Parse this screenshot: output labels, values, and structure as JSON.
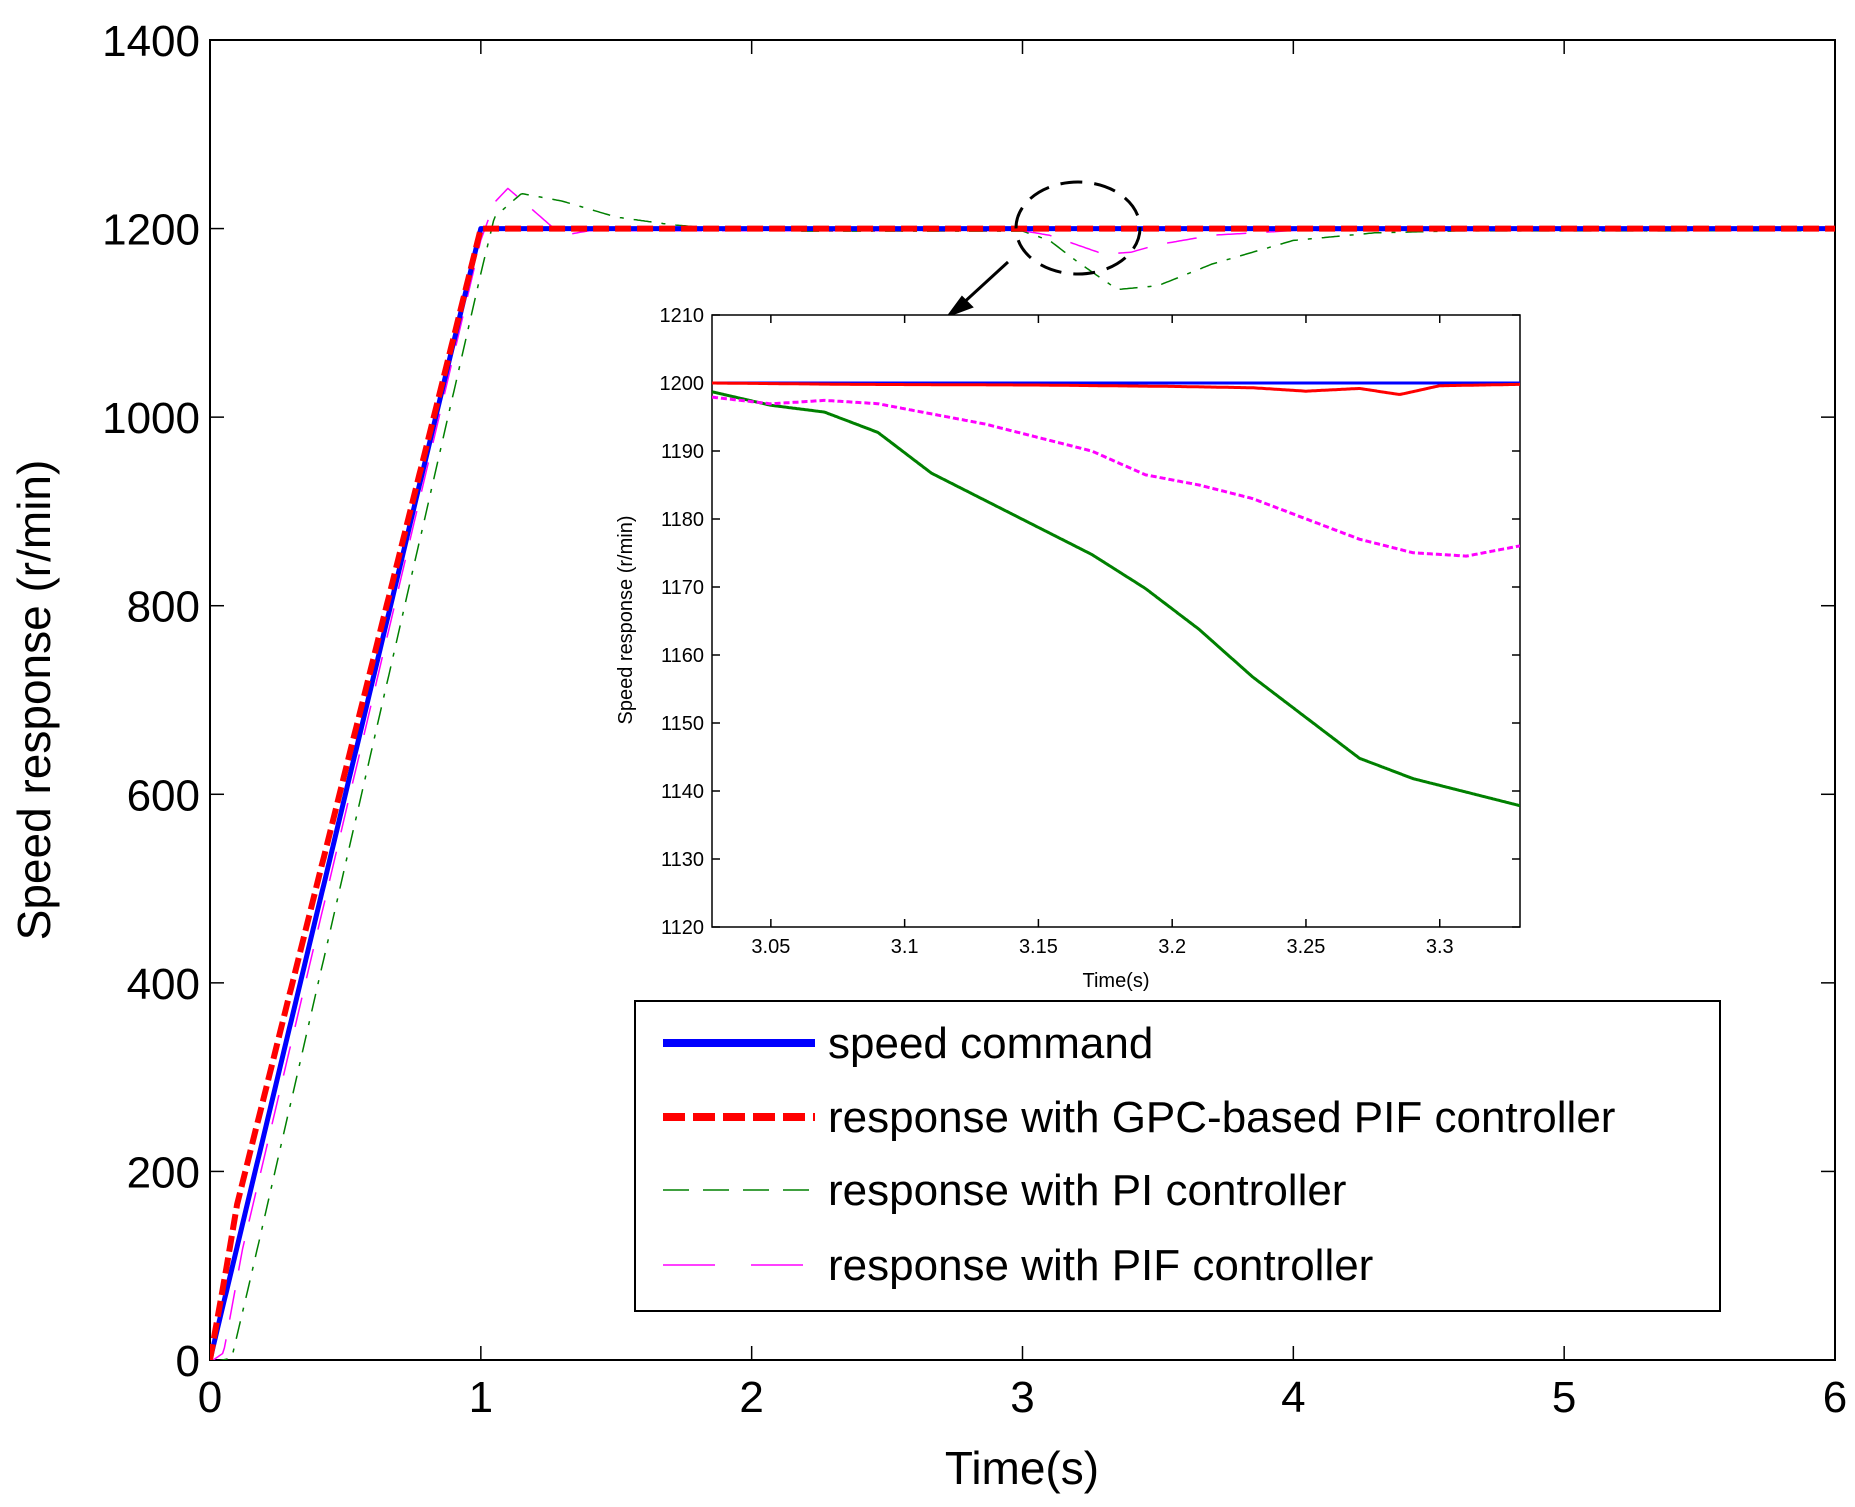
{
  "chart_data": [
    {
      "type": "line",
      "title": "",
      "xlabel": "Time(s)",
      "ylabel": "Speed response (r/min)",
      "xlim": [
        0,
        6
      ],
      "ylim": [
        0,
        1400
      ],
      "xticks": [
        "0",
        "1",
        "2",
        "3",
        "4",
        "5",
        "6"
      ],
      "yticks": [
        "0",
        "200",
        "400",
        "600",
        "800",
        "1000",
        "1200",
        "1400"
      ],
      "grid": false,
      "legend_position": "bottom-right",
      "series": [
        {
          "name": "speed command",
          "color": "#0000ff",
          "style": "solid",
          "x": [
            0,
            1,
            6
          ],
          "y": [
            0,
            1200,
            1200
          ]
        },
        {
          "name": "response with GPC-based PIF controller",
          "color": "#ff0000",
          "style": "dashed",
          "x": [
            0,
            0.05,
            0.1,
            1,
            6
          ],
          "y": [
            0,
            80,
            165,
            1200,
            1200
          ]
        },
        {
          "name": "response with PI controller",
          "color": "#008000",
          "style": "dashdot",
          "x": [
            0,
            0.08,
            0.15,
            1.0,
            1.05,
            1.15,
            1.3,
            1.5,
            1.7,
            1.9,
            2.2,
            2.6,
            3.0,
            3.1,
            3.2,
            3.35,
            3.5,
            3.7,
            4.0,
            4.3,
            4.6,
            5.0,
            6.0
          ],
          "y": [
            0,
            5,
            90,
            1155,
            1215,
            1240,
            1232,
            1215,
            1207,
            1202,
            1200,
            1200,
            1200,
            1190,
            1168,
            1138,
            1142,
            1165,
            1190,
            1198,
            1200,
            1200,
            1200
          ]
        },
        {
          "name": "response with PIF controller",
          "color": "#ff00ff",
          "style": "dashdot",
          "x": [
            0,
            0.05,
            0.12,
            1.0,
            1.05,
            1.1,
            1.2,
            1.3,
            1.4,
            1.6,
            2.0,
            3.0,
            3.1,
            3.2,
            3.3,
            3.4,
            3.5,
            3.7,
            4.0,
            6.0
          ],
          "y": [
            0,
            10,
            120,
            1190,
            1230,
            1245,
            1220,
            1195,
            1200,
            1200,
            1200,
            1200,
            1195,
            1185,
            1175,
            1177,
            1185,
            1195,
            1200,
            1200
          ]
        }
      ],
      "annotation": "dashed ellipse near t=3.2 with arrow pointing to inset"
    },
    {
      "type": "line",
      "title": "",
      "xlabel": "Time(s)",
      "ylabel": "Speed response (r/min)",
      "xlim": [
        3.028,
        3.33
      ],
      "ylim": [
        1120,
        1210
      ],
      "xticks": [
        "3.05",
        "3.1",
        "3.15",
        "3.2",
        "3.25",
        "3.3"
      ],
      "yticks": [
        "1120",
        "1130",
        "1140",
        "1150",
        "1160",
        "1170",
        "1180",
        "1190",
        "1200",
        "1210"
      ],
      "grid": false,
      "series": [
        {
          "name": "speed command",
          "color": "#0000ff",
          "x": [
            3.028,
            3.33
          ],
          "y": [
            1200,
            1200
          ]
        },
        {
          "name": "response with GPC-based PIF controller",
          "color": "#ff0000",
          "x": [
            3.028,
            3.08,
            3.15,
            3.2,
            3.23,
            3.25,
            3.27,
            3.285,
            3.3,
            3.33
          ],
          "y": [
            1200,
            1199.8,
            1199.7,
            1199.5,
            1199.3,
            1198.8,
            1199.2,
            1198.3,
            1199.6,
            1199.8
          ]
        },
        {
          "name": "response with PI controller",
          "color": "#008000",
          "x": [
            3.028,
            3.05,
            3.07,
            3.09,
            3.11,
            3.13,
            3.15,
            3.17,
            3.19,
            3.21,
            3.23,
            3.25,
            3.27,
            3.29,
            3.31,
            3.33
          ],
          "y": [
            1200,
            1198,
            1197,
            1194,
            1188,
            1184,
            1180,
            1176,
            1171,
            1165,
            1158,
            1152,
            1146,
            1143,
            1141,
            1139
          ]
        },
        {
          "name": "response with PIF controller",
          "color": "#ff00ff",
          "x": [
            3.028,
            3.05,
            3.07,
            3.09,
            3.11,
            3.13,
            3.15,
            3.17,
            3.19,
            3.21,
            3.23,
            3.25,
            3.27,
            3.29,
            3.31,
            3.33
          ],
          "y": [
            1199,
            1198,
            1198.5,
            1198,
            1196.5,
            1195,
            1193,
            1191,
            1187.5,
            1186,
            1184,
            1181,
            1178,
            1176,
            1175.5,
            1177
          ]
        }
      ]
    }
  ]
}
